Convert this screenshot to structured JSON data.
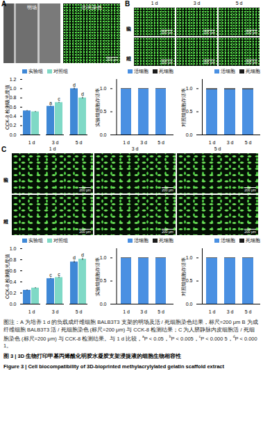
{
  "panels": {
    "A": {
      "label": "A",
      "images": [
        {
          "label": "明场"
        },
        {
          "label": "活/死染色",
          "scale_bar": "200 μm"
        }
      ]
    },
    "B": {
      "label": "B",
      "columns": [
        "1 d",
        "3 d",
        "5 d"
      ],
      "rows": [
        "实验组",
        "对照组"
      ],
      "scale_bar": "200 μm"
    },
    "C": {
      "label": "C",
      "columns": [
        "1 d",
        "3 d",
        "5 d"
      ],
      "rows": [
        "实验组",
        "对照组"
      ],
      "scale_bar": "200 μm"
    }
  },
  "chart_data": [
    {
      "type": "bar",
      "y_label": "CCK-8 检测吸光度值",
      "categories": [
        "1 d",
        "3 d",
        "5 d"
      ],
      "series": [
        {
          "name": "实验组",
          "color": "#3f88d6",
          "values": [
            0.52,
            0.62,
            1.0
          ],
          "errors": [
            0.01,
            0.01,
            0.02
          ],
          "annotations": [
            null,
            "a",
            "d"
          ]
        },
        {
          "name": "对照组",
          "color": "#7fd9c6",
          "values": [
            0.5,
            0.7,
            0.8
          ],
          "errors": [
            0.01,
            0.01,
            0.02
          ],
          "annotations": [
            null,
            "c",
            "d"
          ]
        }
      ],
      "ylim": [
        0,
        1.2
      ],
      "yticks": [
        {
          "value": 0,
          "label": "0.0"
        },
        {
          "value": 0.2,
          "label": "0.2"
        },
        {
          "value": 0.4,
          "label": "0.4"
        },
        {
          "value": 0.6,
          "label": "0.6"
        },
        {
          "value": 0.8,
          "label": "0.8"
        },
        {
          "value": 1.0,
          "label": "1.0"
        },
        {
          "value": 1.2,
          "label": "1.2"
        }
      ],
      "legend": "upper left",
      "grid": false
    },
    {
      "type": "bar",
      "stacked": true,
      "y_label": "实验组细胞存活率",
      "categories": [
        "1 d",
        "3 d",
        "5 d"
      ],
      "series": [
        {
          "name": "活细胞",
          "color": "#4a90e2",
          "values": [
            0.99,
            0.99,
            0.99
          ]
        },
        {
          "name": "死细胞",
          "color": "#1a1a1a",
          "values": [
            0.01,
            0.01,
            0.01
          ]
        }
      ],
      "ylim": [
        0,
        1.2
      ],
      "yticks": [
        {
          "value": 0,
          "label": "0.0"
        },
        {
          "value": 0.5,
          "label": "0.5"
        },
        {
          "value": 1.0,
          "label": "1.0"
        }
      ],
      "legend": "upper right",
      "grid": false
    },
    {
      "type": "bar",
      "stacked": true,
      "y_label": "对照组细胞存活率",
      "categories": [
        "1 d",
        "3 d",
        "5 d"
      ],
      "series": [
        {
          "name": "活细胞",
          "color": "#4a90e2",
          "values": [
            0.98,
            0.98,
            0.98
          ]
        },
        {
          "name": "死细胞",
          "color": "#1a1a1a",
          "values": [
            0.02,
            0.02,
            0.02
          ]
        }
      ],
      "ylim": [
        0,
        1.2
      ],
      "yticks": [
        {
          "value": 0,
          "label": "0.0"
        },
        {
          "value": 0.5,
          "label": "0.5"
        },
        {
          "value": 1.0,
          "label": "1.0"
        }
      ],
      "legend": "upper right",
      "grid": false
    },
    {
      "type": "bar",
      "y_label": "CCK-8 检测吸光度值",
      "categories": [
        "1 d",
        "3 d",
        "5 d"
      ],
      "series": [
        {
          "name": "实验组",
          "color": "#3f88d6",
          "values": [
            0.25,
            0.46,
            0.76
          ],
          "errors": [
            0.01,
            0.01,
            0.02
          ],
          "annotations": [
            null,
            "c",
            "d"
          ]
        },
        {
          "name": "对照组",
          "color": "#7fd9c6",
          "values": [
            0.29,
            0.48,
            0.81
          ],
          "errors": [
            0.01,
            0.01,
            0.02
          ],
          "annotations": [
            null,
            "c",
            "d"
          ]
        }
      ],
      "ylim": [
        0,
        1.0
      ],
      "yticks": [
        {
          "value": 0,
          "label": "0.0"
        },
        {
          "value": 0.2,
          "label": "0.2"
        },
        {
          "value": 0.4,
          "label": "0.4"
        },
        {
          "value": 0.6,
          "label": "0.6"
        },
        {
          "value": 0.8,
          "label": "0.8"
        },
        {
          "value": 1.0,
          "label": "1.0"
        }
      ],
      "legend": "upper left",
      "grid": false
    },
    {
      "type": "bar",
      "stacked": true,
      "y_label": "实验组细胞存活率",
      "categories": [
        "1 d",
        "3 d",
        "5 d"
      ],
      "series": [
        {
          "name": "活细胞",
          "color": "#4a90e2",
          "values": [
            0.99,
            0.99,
            0.99
          ]
        },
        {
          "name": "死细胞",
          "color": "#1a1a1a",
          "values": [
            0.01,
            0.01,
            0.01
          ]
        }
      ],
      "ylim": [
        0,
        1.2
      ],
      "yticks": [
        {
          "value": 0,
          "label": "0.0"
        },
        {
          "value": 0.5,
          "label": "0.5"
        },
        {
          "value": 1.0,
          "label": "1.0"
        }
      ],
      "legend": "upper right",
      "grid": false
    },
    {
      "type": "bar",
      "stacked": true,
      "y_label": "对照组细胞存活率",
      "categories": [
        "1 d",
        "3 d",
        "5 d"
      ],
      "series": [
        {
          "name": "活细胞",
          "color": "#4a90e2",
          "values": [
            0.99,
            0.99,
            0.99
          ]
        },
        {
          "name": "死细胞",
          "color": "#1a1a1a",
          "values": [
            0.01,
            0.01,
            0.01
          ]
        }
      ],
      "ylim": [
        0,
        1.2
      ],
      "yticks": [
        {
          "value": 0,
          "label": "0.0"
        },
        {
          "value": 0.5,
          "label": "0.5"
        },
        {
          "value": 1.0,
          "label": "1.0"
        }
      ],
      "legend": "upper right",
      "grid": false
    }
  ],
  "caption": {
    "note": "图注：A 为培养 1 d 的负载成纤维细胞 BALB3T3 支架的明场及活 / 死细胞染色结果，标尺=200 μm B 为成纤维细胞 BALB3T3 活 / 死细胞染色 (标尺=200 μm) 与 CCK-8 检测结果；C 为人脐静脉内皮细胞活 / 死细胞染色 (标尺=200 μm) 与 CCK-8 检测结果。与 1 d 比较，",
    "significance": [
      {
        "mark": "a",
        "text": "P < 0.05，"
      },
      {
        "mark": "b",
        "text": "P < 0.005，"
      },
      {
        "mark": "c",
        "text": "P < 0.000 5，"
      },
      {
        "mark": "d",
        "text": "P < 0.000 1。"
      }
    ],
    "title_cn": "图 3 | 3D 生物打印甲基丙烯酰化明胶水凝胶支架浸提液的细胞生物相容性",
    "title_en": "Figure 3 | Cell biocompatibility of 3D-bioprinted methylacrylylated gelatin scaffold extract"
  }
}
